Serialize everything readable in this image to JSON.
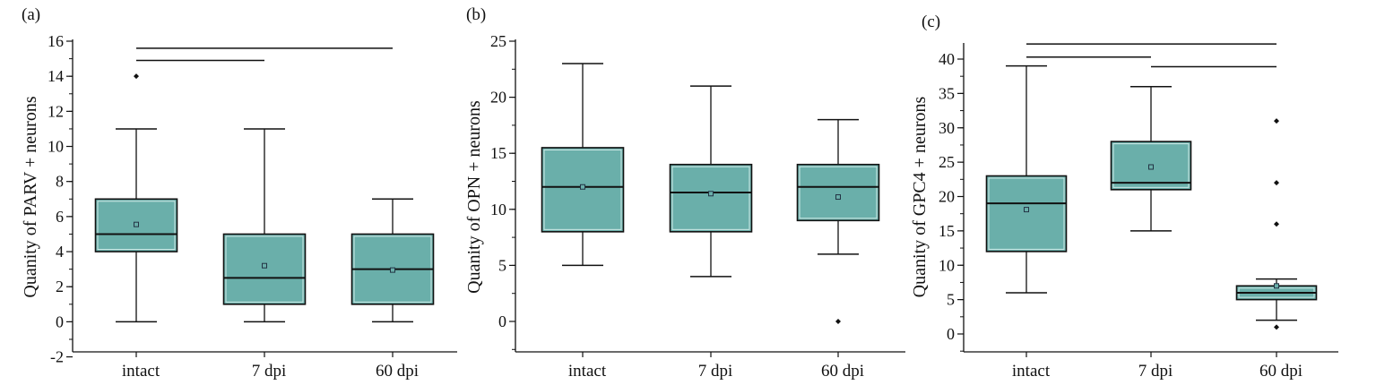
{
  "chart_data": [
    {
      "type": "box",
      "panel_label": "(a)",
      "ylabel": "Quanity of PARV + neurons",
      "categories": [
        "intact",
        "7 dpi",
        "60 dpi"
      ],
      "ylim": [
        -2,
        16
      ],
      "yticks": [
        -2,
        0,
        2,
        4,
        6,
        8,
        10,
        12,
        14,
        16
      ],
      "boxes": [
        {
          "min": 0,
          "q1": 4,
          "median": 5,
          "q3": 7,
          "max": 11,
          "mean": 5.55,
          "outliers": [
            14
          ]
        },
        {
          "min": 0,
          "q1": 1,
          "median": 2.5,
          "q3": 5,
          "max": 11,
          "mean": 3.2,
          "outliers": []
        },
        {
          "min": 0,
          "q1": 1,
          "median": 3,
          "q3": 5,
          "max": 7,
          "mean": 2.95,
          "outliers": []
        }
      ],
      "significance": [
        {
          "from": 0,
          "to": 2,
          "y": 15.6
        },
        {
          "from": 0,
          "to": 1,
          "y": 14.9
        }
      ]
    },
    {
      "type": "box",
      "panel_label": "(b)",
      "ylabel": "Quanity of OPN + neurons",
      "categories": [
        "intact",
        "7 dpi",
        "60 dpi"
      ],
      "ylim": [
        -2.7,
        25
      ],
      "yticks": [
        0,
        5,
        10,
        15,
        20,
        25
      ],
      "boxes": [
        {
          "min": 5,
          "q1": 8,
          "median": 12,
          "q3": 15.5,
          "max": 23,
          "mean": 12,
          "outliers": []
        },
        {
          "min": 4,
          "q1": 8,
          "median": 11.5,
          "q3": 14,
          "max": 21,
          "mean": 11.4,
          "outliers": []
        },
        {
          "min": 6,
          "q1": 9,
          "median": 12,
          "q3": 14,
          "max": 18,
          "mean": 11.1,
          "outliers": [
            0
          ]
        }
      ],
      "significance": []
    },
    {
      "type": "box",
      "panel_label": "(c)",
      "ylabel": "Quanity of GPC4 + neurons",
      "categories": [
        "intact",
        "7 dpi",
        "60 dpi"
      ],
      "ylim": [
        -2.5,
        42.5
      ],
      "yticks": [
        0,
        5,
        10,
        15,
        20,
        25,
        30,
        35,
        40
      ],
      "boxes": [
        {
          "min": 6,
          "q1": 12,
          "median": 19,
          "q3": 23,
          "max": 39,
          "mean": 18.1,
          "outliers": []
        },
        {
          "min": 15,
          "q1": 21,
          "median": 22,
          "q3": 28,
          "max": 36,
          "mean": 24.3,
          "outliers": []
        },
        {
          "min": 2,
          "q1": 5,
          "median": 6,
          "q3": 7,
          "max": 8,
          "mean": 7,
          "outliers": [
            1,
            16,
            22,
            31
          ]
        }
      ],
      "significance": [
        {
          "from": 0,
          "to": 2,
          "y": 42.2
        },
        {
          "from": 0,
          "to": 1,
          "y": 40.3
        },
        {
          "from": 1,
          "to": 2,
          "y": 38.9
        }
      ]
    }
  ],
  "colors": {
    "box_fill": "#6aafaa",
    "box_inner": "#cfe9e6",
    "ink": "#111111"
  }
}
